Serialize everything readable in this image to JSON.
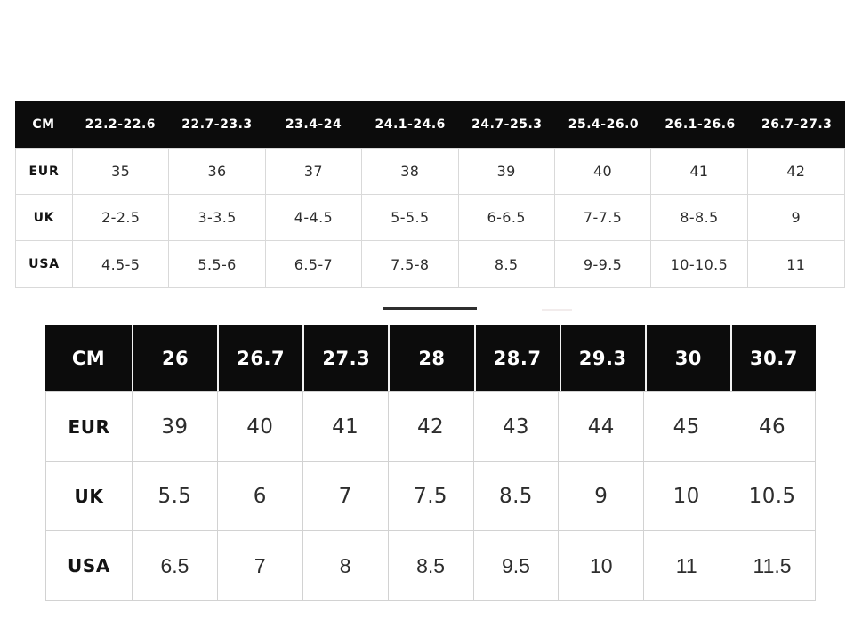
{
  "theme": {
    "background": "#ffffff",
    "header_bg": "#0c0c0c",
    "header_text": "#ffffff",
    "border_gray_small": "#d9d9d9",
    "border_gray_large": "#d2d2d2",
    "body_text": "#2d2d2d",
    "divider_active": "#2f2f2f",
    "divider_inactive": "#f2ecec"
  },
  "chart_data": [
    {
      "type": "table",
      "header": [
        "CM",
        "22.2-22.6",
        "22.7-23.3",
        "23.4-24",
        "24.1-24.6",
        "24.7-25.3",
        "25.4-26.0",
        "26.1-26.6",
        "26.7-27.3"
      ],
      "rows": [
        [
          "EUR",
          "35",
          "36",
          "37",
          "38",
          "39",
          "40",
          "41",
          "42"
        ],
        [
          "UK",
          "2-2.5",
          "3-3.5",
          "4-4.5",
          "5-5.5",
          "6-6.5",
          "7-7.5",
          "8-8.5",
          "9"
        ],
        [
          "USA",
          "4.5-5",
          "5.5-6",
          "6.5-7",
          "7.5-8",
          "8.5",
          "9-9.5",
          "10-10.5",
          "11"
        ]
      ]
    },
    {
      "type": "table",
      "header": [
        "CM",
        "26",
        "26.7",
        "27.3",
        "28",
        "28.7",
        "29.3",
        "30",
        "30.7"
      ],
      "rows": [
        [
          "EUR",
          "39",
          "40",
          "41",
          "42",
          "43",
          "44",
          "45",
          "46"
        ],
        [
          "UK",
          "5.5",
          "6",
          "7",
          "7.5",
          "8.5",
          "9",
          "10",
          "10.5"
        ],
        [
          "USA",
          "6.5",
          "7",
          "8",
          "8.5",
          "9.5",
          "10",
          "11",
          "11.5"
        ]
      ]
    }
  ]
}
